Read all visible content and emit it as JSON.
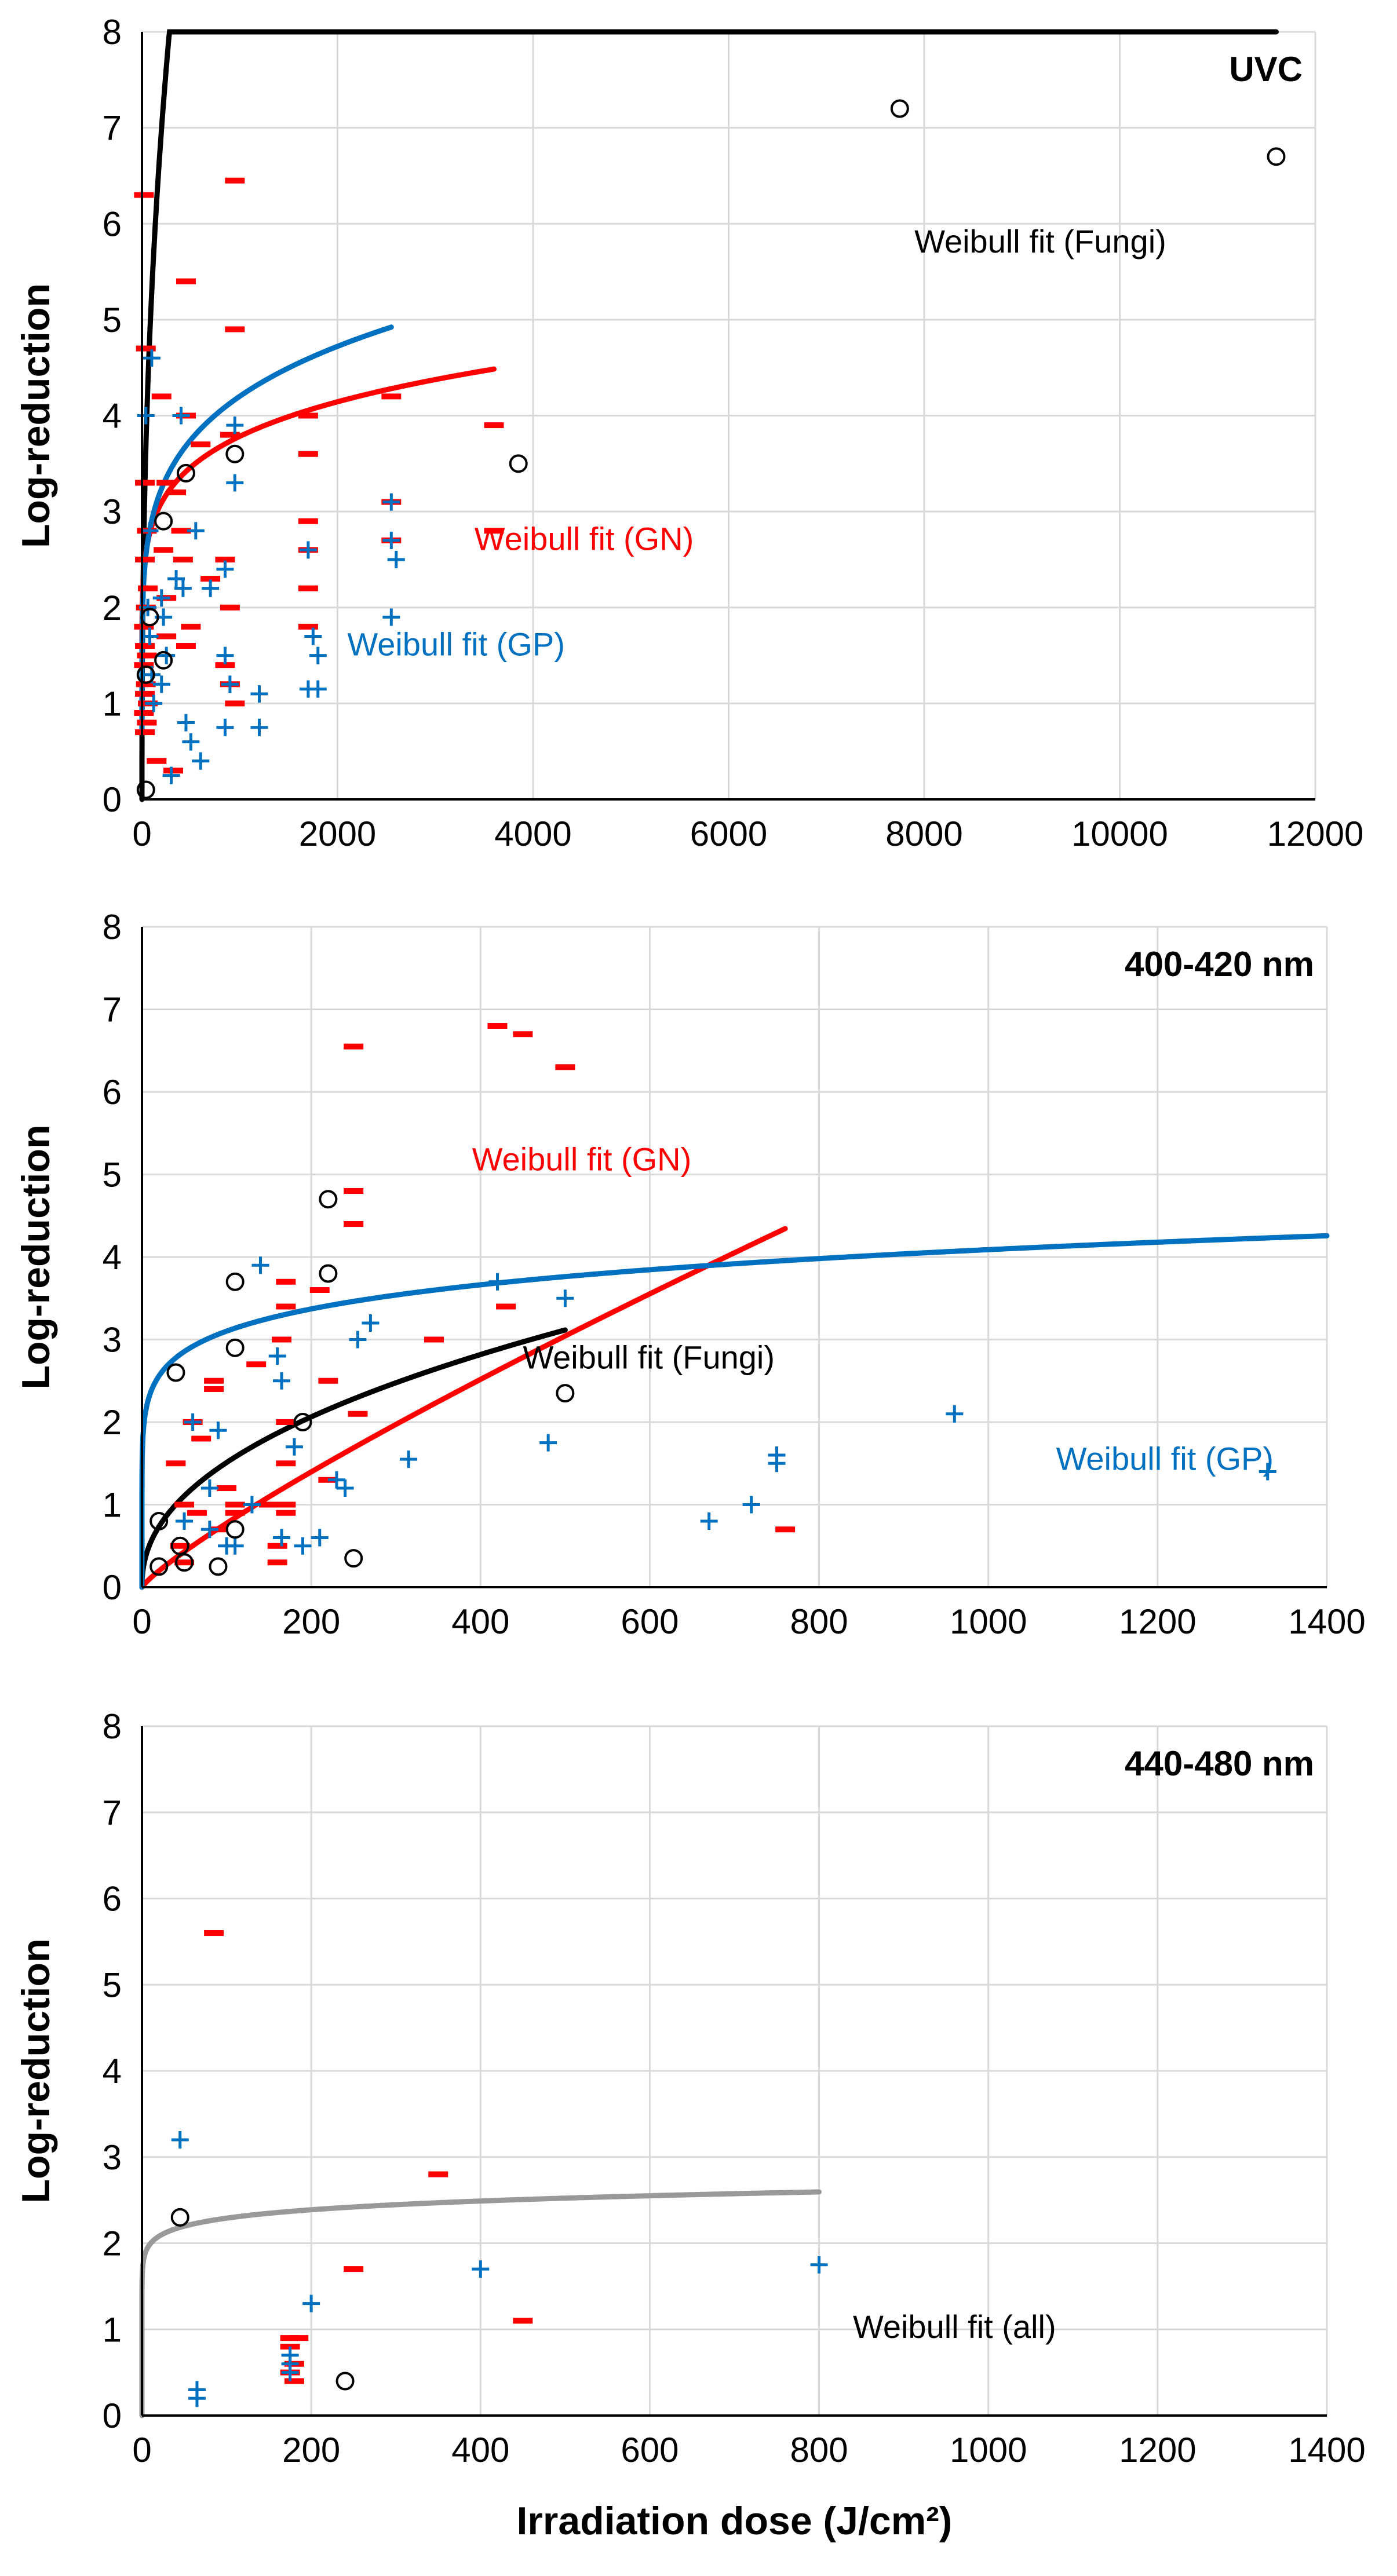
{
  "colors": {
    "fungi": "#000000",
    "gn": "#ff0000",
    "gp": "#0070c0",
    "all": "#999999"
  },
  "chart_data": [
    {
      "type": "scatter",
      "title": "UVC",
      "xlabel": "",
      "ylabel": "Log-reduction",
      "xlim": [
        0,
        12000
      ],
      "ylim": [
        0,
        8
      ],
      "xticks": [
        "0",
        "2000",
        "4000",
        "6000",
        "8000",
        "10000",
        "12000"
      ],
      "yticks": [
        "0",
        "1",
        "2",
        "3",
        "4",
        "5",
        "6",
        "7",
        "8"
      ],
      "series": [
        {
          "name": "GN",
          "marker": "dash",
          "color": "#ff0000",
          "points": [
            [
              20,
              6.3
            ],
            [
              40,
              4.7
            ],
            [
              30,
              3.3
            ],
            [
              50,
              2.8
            ],
            [
              30,
              2.5
            ],
            [
              60,
              2.2
            ],
            [
              40,
              2.0
            ],
            [
              20,
              1.8
            ],
            [
              30,
              1.6
            ],
            [
              50,
              1.5
            ],
            [
              20,
              1.4
            ],
            [
              40,
              1.2
            ],
            [
              30,
              1.1
            ],
            [
              60,
              1.0
            ],
            [
              20,
              0.9
            ],
            [
              50,
              0.8
            ],
            [
              30,
              0.7
            ],
            [
              150,
              0.4
            ],
            [
              200,
              4.2
            ],
            [
              250,
              3.3
            ],
            [
              220,
              2.6
            ],
            [
              250,
              2.1
            ],
            [
              250,
              1.7
            ],
            [
              350,
              3.2
            ],
            [
              320,
              0.3
            ],
            [
              400,
              2.8
            ],
            [
              420,
              2.5
            ],
            [
              450,
              5.4
            ],
            [
              450,
              4.0
            ],
            [
              500,
              1.8
            ],
            [
              450,
              1.6
            ],
            [
              600,
              3.7
            ],
            [
              700,
              2.3
            ],
            [
              900,
              3.8
            ],
            [
              850,
              2.5
            ],
            [
              900,
              2.0
            ],
            [
              850,
              1.4
            ],
            [
              900,
              1.2
            ],
            [
              950,
              1.0
            ],
            [
              950,
              6.45
            ],
            [
              950,
              4.9
            ],
            [
              1700,
              4.0
            ],
            [
              1700,
              3.6
            ],
            [
              1700,
              2.9
            ],
            [
              1700,
              2.6
            ],
            [
              1700,
              2.2
            ],
            [
              1700,
              1.8
            ],
            [
              2550,
              4.2
            ],
            [
              2550,
              3.1
            ],
            [
              2550,
              2.7
            ],
            [
              3600,
              3.9
            ],
            [
              3600,
              2.8
            ]
          ]
        },
        {
          "name": "GP",
          "marker": "plus",
          "color": "#0070c0",
          "points": [
            [
              40,
              4.0
            ],
            [
              100,
              4.6
            ],
            [
              80,
              2.8
            ],
            [
              60,
              2.0
            ],
            [
              80,
              1.7
            ],
            [
              100,
              1.3
            ],
            [
              120,
              1.0
            ],
            [
              200,
              2.1
            ],
            [
              220,
              1.9
            ],
            [
              250,
              1.5
            ],
            [
              200,
              1.2
            ],
            [
              300,
              0.25
            ],
            [
              350,
              2.3
            ],
            [
              400,
              4.0
            ],
            [
              420,
              2.2
            ],
            [
              450,
              0.8
            ],
            [
              500,
              0.6
            ],
            [
              550,
              2.8
            ],
            [
              600,
              0.4
            ],
            [
              700,
              2.2
            ],
            [
              850,
              2.4
            ],
            [
              850,
              1.5
            ],
            [
              900,
              1.2
            ],
            [
              850,
              0.75
            ],
            [
              950,
              3.9
            ],
            [
              950,
              3.3
            ],
            [
              1200,
              1.1
            ],
            [
              1200,
              0.75
            ],
            [
              1700,
              2.6
            ],
            [
              1750,
              1.7
            ],
            [
              1800,
              1.5
            ],
            [
              1700,
              1.15
            ],
            [
              1800,
              1.15
            ],
            [
              2550,
              3.1
            ],
            [
              2600,
              2.5
            ],
            [
              2550,
              2.7
            ],
            [
              2550,
              1.9
            ]
          ]
        },
        {
          "name": "Fungi",
          "marker": "circle",
          "color": "#000000",
          "points": [
            [
              40,
              0.1
            ],
            [
              40,
              1.3
            ],
            [
              80,
              1.9
            ],
            [
              220,
              2.9
            ],
            [
              220,
              1.45
            ],
            [
              450,
              3.4
            ],
            [
              950,
              3.6
            ],
            [
              3850,
              3.5
            ],
            [
              7750,
              7.2
            ],
            [
              11600,
              6.7
            ]
          ]
        }
      ],
      "fits": [
        {
          "name": "Weibull fit (Fungi)",
          "color": "#000000",
          "xmax": 11600,
          "delta": 1.55,
          "p": 0.4,
          "n0": 0,
          "label_at": [
            7900,
            5.7
          ]
        },
        {
          "name": "Weibull fit (GN)",
          "color": "#ff0000",
          "xmax": 3600,
          "delta": 1.97,
          "p": 0.17,
          "n0": 0.9,
          "label_at": [
            3400,
            2.6
          ]
        },
        {
          "name": "Weibull fit (GP)",
          "color": "#0070c0",
          "xmax": 2550,
          "delta": 1.9,
          "p": 0.2,
          "n0": 0.7,
          "label_at": [
            2100,
            1.5
          ]
        }
      ]
    },
    {
      "type": "scatter",
      "title": "400-420 nm",
      "xlabel": "",
      "ylabel": "Log-reduction",
      "xlim": [
        0,
        1400
      ],
      "ylim": [
        0,
        8
      ],
      "xticks": [
        "0",
        "200",
        "400",
        "600",
        "800",
        "1000",
        "1200",
        "1400"
      ],
      "yticks": [
        "0",
        "1",
        "2",
        "3",
        "4",
        "5",
        "6",
        "7",
        "8"
      ],
      "series": [
        {
          "name": "GN",
          "marker": "dash",
          "color": "#ff0000",
          "points": [
            [
              40,
              1.5
            ],
            [
              50,
              1.0
            ],
            [
              45,
              0.5
            ],
            [
              60,
              2.0
            ],
            [
              70,
              1.8
            ],
            [
              65,
              0.9
            ],
            [
              50,
              0.3
            ],
            [
              85,
              2.5
            ],
            [
              85,
              2.4
            ],
            [
              100,
              1.2
            ],
            [
              110,
              1.0
            ],
            [
              90,
              0.7
            ],
            [
              110,
              0.9
            ],
            [
              135,
              2.7
            ],
            [
              150,
              1.0
            ],
            [
              160,
              0.5
            ],
            [
              160,
              0.3
            ],
            [
              170,
              3.7
            ],
            [
              170,
              3.4
            ],
            [
              165,
              3.0
            ],
            [
              170,
              2.0
            ],
            [
              170,
              1.5
            ],
            [
              170,
              1.0
            ],
            [
              170,
              0.9
            ],
            [
              210,
              3.6
            ],
            [
              220,
              2.5
            ],
            [
              220,
              1.3
            ],
            [
              250,
              6.55
            ],
            [
              250,
              4.8
            ],
            [
              250,
              4.4
            ],
            [
              255,
              2.1
            ],
            [
              345,
              3.0
            ],
            [
              420,
              6.8
            ],
            [
              450,
              6.7
            ],
            [
              430,
              3.4
            ],
            [
              500,
              6.3
            ],
            [
              760,
              0.7
            ]
          ]
        },
        {
          "name": "GP",
          "marker": "plus",
          "color": "#0070c0",
          "points": [
            [
              50,
              0.8
            ],
            [
              60,
              2.0
            ],
            [
              80,
              1.2
            ],
            [
              80,
              0.7
            ],
            [
              90,
              1.9
            ],
            [
              100,
              0.5
            ],
            [
              110,
              0.5
            ],
            [
              130,
              1.0
            ],
            [
              140,
              3.9
            ],
            [
              160,
              2.8
            ],
            [
              165,
              2.5
            ],
            [
              165,
              0.6
            ],
            [
              180,
              1.7
            ],
            [
              190,
              0.5
            ],
            [
              210,
              0.6
            ],
            [
              230,
              1.3
            ],
            [
              240,
              1.2
            ],
            [
              255,
              3.0
            ],
            [
              270,
              3.2
            ],
            [
              315,
              1.55
            ],
            [
              420,
              3.7
            ],
            [
              480,
              1.75
            ],
            [
              500,
              3.5
            ],
            [
              670,
              0.8
            ],
            [
              720,
              1.0
            ],
            [
              750,
              1.6
            ],
            [
              750,
              1.5
            ],
            [
              960,
              2.1
            ],
            [
              1330,
              1.4
            ]
          ]
        },
        {
          "name": "Fungi",
          "marker": "circle",
          "color": "#000000",
          "points": [
            [
              20,
              0.8
            ],
            [
              20,
              0.25
            ],
            [
              40,
              2.6
            ],
            [
              45,
              0.5
            ],
            [
              50,
              0.3
            ],
            [
              90,
              0.25
            ],
            [
              110,
              3.7
            ],
            [
              110,
              2.9
            ],
            [
              110,
              0.7
            ],
            [
              190,
              2.0
            ],
            [
              220,
              4.7
            ],
            [
              220,
              3.8
            ],
            [
              250,
              0.35
            ],
            [
              500,
              2.35
            ]
          ]
        }
      ],
      "fits": [
        {
          "name": "Weibull fit (GN)",
          "color": "#ff0000",
          "xmax": 760,
          "delta": 135,
          "p": 0.85,
          "n0": 0,
          "label_at": [
            390,
            5.05
          ]
        },
        {
          "name": "Weibull fit (Fungi)",
          "color": "#000000",
          "xmax": 500,
          "delta": 40,
          "p": 0.45,
          "n0": 0,
          "label_at": [
            450,
            2.65
          ]
        },
        {
          "name": "Weibull fit (GP)",
          "color": "#0070c0",
          "xmax": 1400,
          "delta": 0.008,
          "p": 0.12,
          "n0": 0,
          "label_at": [
            1080,
            1.42
          ]
        }
      ]
    },
    {
      "type": "scatter",
      "title": "440-480 nm",
      "xlabel": "Irradiation dose (J/cm²)",
      "ylabel": "Log-reduction",
      "xlim": [
        0,
        1400
      ],
      "ylim": [
        0,
        8
      ],
      "xticks": [
        "0",
        "200",
        "400",
        "600",
        "800",
        "1000",
        "1200",
        "1400"
      ],
      "yticks": [
        "0",
        "1",
        "2",
        "3",
        "4",
        "5",
        "6",
        "7",
        "8"
      ],
      "series": [
        {
          "name": "GN",
          "marker": "dash",
          "color": "#ff0000",
          "points": [
            [
              85,
              5.6
            ],
            [
              175,
              0.9
            ],
            [
              185,
              0.9
            ],
            [
              175,
              0.8
            ],
            [
              180,
              0.6
            ],
            [
              175,
              0.5
            ],
            [
              180,
              0.4
            ],
            [
              250,
              1.7
            ],
            [
              350,
              2.8
            ],
            [
              450,
              1.1
            ]
          ]
        },
        {
          "name": "GP",
          "marker": "plus",
          "color": "#0070c0",
          "points": [
            [
              45,
              3.2
            ],
            [
              65,
              0.3
            ],
            [
              65,
              0.2
            ],
            [
              175,
              0.7
            ],
            [
              175,
              0.6
            ],
            [
              175,
              0.5
            ],
            [
              200,
              1.3
            ],
            [
              400,
              1.7
            ],
            [
              800,
              1.75
            ]
          ]
        },
        {
          "name": "Fungi",
          "marker": "circle",
          "color": "#000000",
          "points": [
            [
              45,
              2.3
            ],
            [
              240,
              0.4
            ]
          ]
        }
      ],
      "fits": [
        {
          "name": "Weibull fit (all)",
          "color": "#999999",
          "xmax": 800,
          "delta": 0.0001,
          "p": 0.06,
          "n0": 0,
          "label_at": [
            840,
            0.9
          ]
        }
      ]
    }
  ]
}
